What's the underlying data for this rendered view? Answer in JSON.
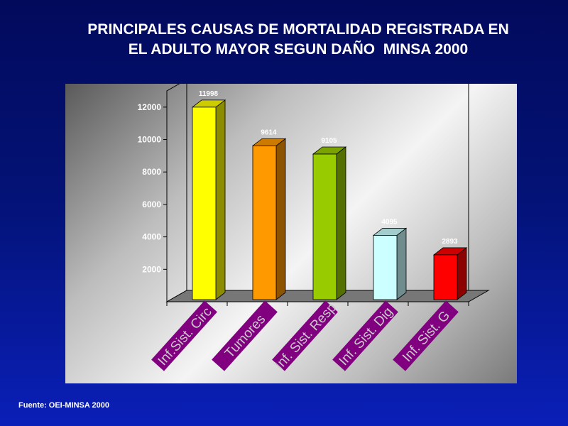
{
  "slide": {
    "title_line1": "PRINCIPALES CAUSAS DE MORTALIDAD REGISTRADA EN",
    "title_line2": "EL ADULTO MAYOR SEGUN DAÑO  MINSA 2000",
    "source": "Fuente: OEI-MINSA 2000"
  },
  "chart_data": {
    "type": "bar",
    "categories": [
      "Inf.Sist. Circ",
      "Tumores",
      "Inf. Sist. Resp",
      "Inf. Sist. Dig",
      "Inf. Sist. G"
    ],
    "values": [
      11998,
      9614,
      9105,
      4095,
      2893
    ],
    "value_labels": [
      "11998",
      "9614",
      "9105",
      "4095",
      "2893"
    ],
    "colors": [
      "#ffff00",
      "#ff9900",
      "#99cc00",
      "#ccffff",
      "#ff0000"
    ],
    "yticks": [
      2000,
      4000,
      6000,
      8000,
      10000,
      12000
    ],
    "ylim": [
      0,
      13000
    ],
    "label_color": "#800080",
    "grid": false,
    "legend": "none"
  }
}
